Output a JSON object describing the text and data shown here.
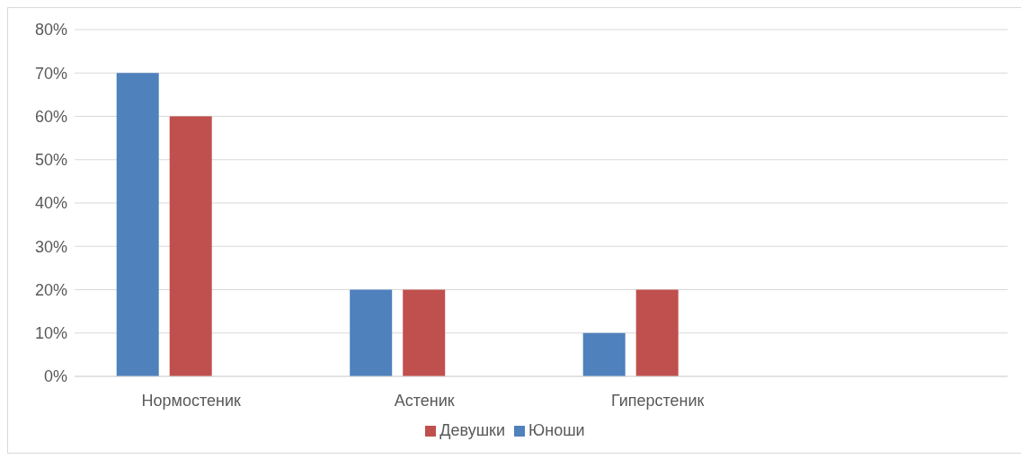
{
  "chart_data": {
    "type": "bar",
    "categories": [
      "Нормостеник",
      "Астеник",
      "Гиперстеник",
      null
    ],
    "series": [
      {
        "name": "Юноши",
        "color": "#4f81bd",
        "values": [
          70,
          20,
          10,
          null
        ]
      },
      {
        "name": "Девушки",
        "color": "#c0504d",
        "values": [
          60,
          20,
          20,
          null
        ]
      }
    ],
    "ylim": [
      0,
      80
    ],
    "yticks": [
      {
        "value": 0,
        "label": "0%"
      },
      {
        "value": 10,
        "label": "10%"
      },
      {
        "value": 20,
        "label": "20%"
      },
      {
        "value": 30,
        "label": "30%"
      },
      {
        "value": 40,
        "label": "40%"
      },
      {
        "value": 50,
        "label": "50%"
      },
      {
        "value": 60,
        "label": "60%"
      },
      {
        "value": 70,
        "label": "70%"
      },
      {
        "value": 80,
        "label": "80%"
      }
    ],
    "grid": "y",
    "legend": "bottom"
  }
}
